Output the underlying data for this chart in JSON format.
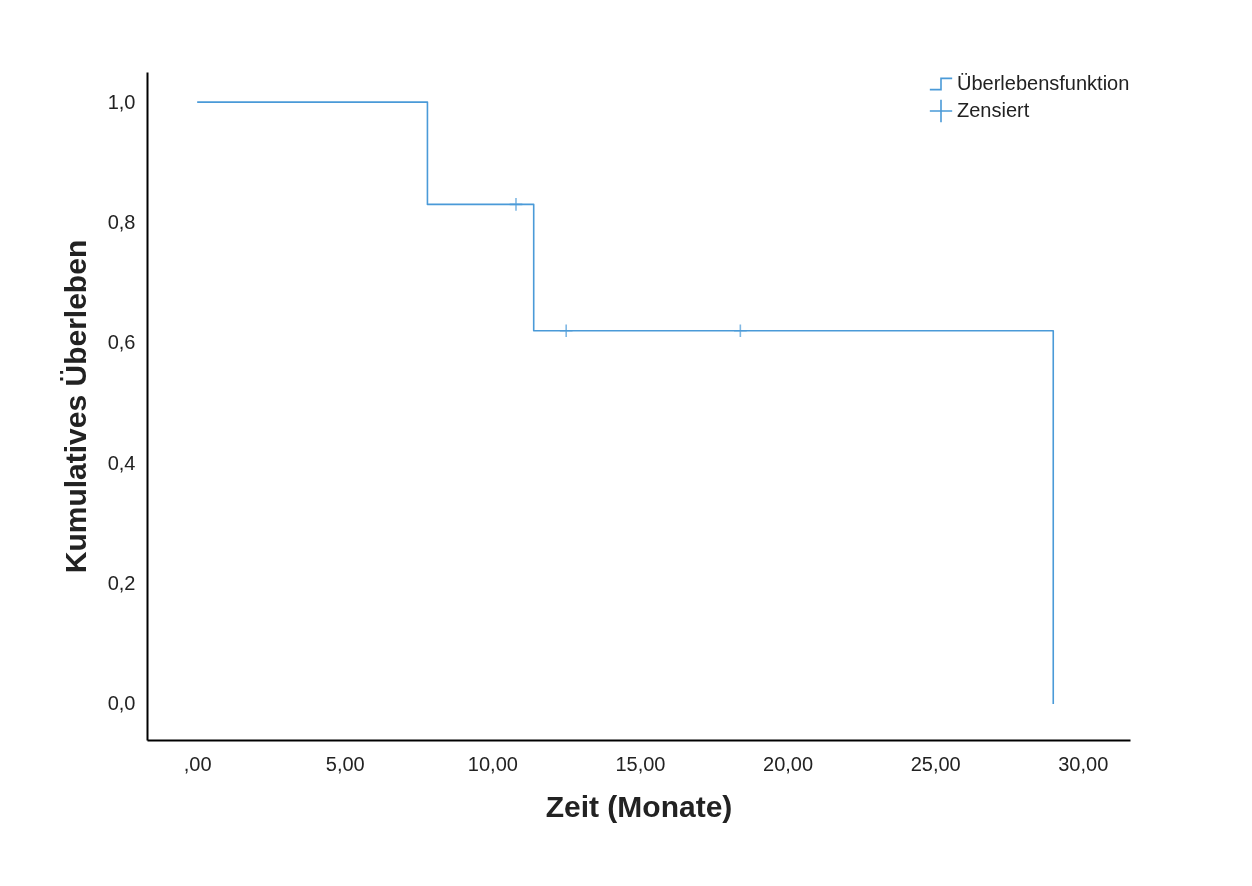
{
  "chart_data": {
    "type": "step",
    "xlabel": "Zeit (Monate)",
    "ylabel": "Kumulatives Überleben",
    "series": [
      {
        "name": "Überlebensfunktion",
        "color": "#4a9ad8",
        "x": [
          0,
          7.8,
          11.4,
          29.0
        ],
        "values": [
          1.0,
          0.83,
          0.62,
          0.0
        ]
      },
      {
        "name": "Zensiert",
        "type": "scatter",
        "marker": "cross",
        "color": "#4a9ad8",
        "x": [
          10.8,
          12.5,
          18.4
        ],
        "values": [
          0.83,
          0.62,
          0.62
        ]
      }
    ],
    "xlim": [
      -1.7,
      31.6
    ],
    "ylim": [
      -0.06,
      1.05
    ],
    "xticks": [
      {
        "value": 0,
        "label": ",00"
      },
      {
        "value": 5,
        "label": "5,00"
      },
      {
        "value": 10,
        "label": "10,00"
      },
      {
        "value": 15,
        "label": "15,00"
      },
      {
        "value": 20,
        "label": "20,00"
      },
      {
        "value": 25,
        "label": "25,00"
      },
      {
        "value": 30,
        "label": "30,00"
      }
    ],
    "yticks": [
      {
        "value": 0,
        "label": "0,0"
      },
      {
        "value": 0.2,
        "label": "0,2"
      },
      {
        "value": 0.4,
        "label": "0,4"
      },
      {
        "value": 0.6,
        "label": "0,6"
      },
      {
        "value": 0.8,
        "label": "0,8"
      },
      {
        "value": 1,
        "label": "1,0"
      }
    ],
    "legend": "top right",
    "grid": false
  }
}
